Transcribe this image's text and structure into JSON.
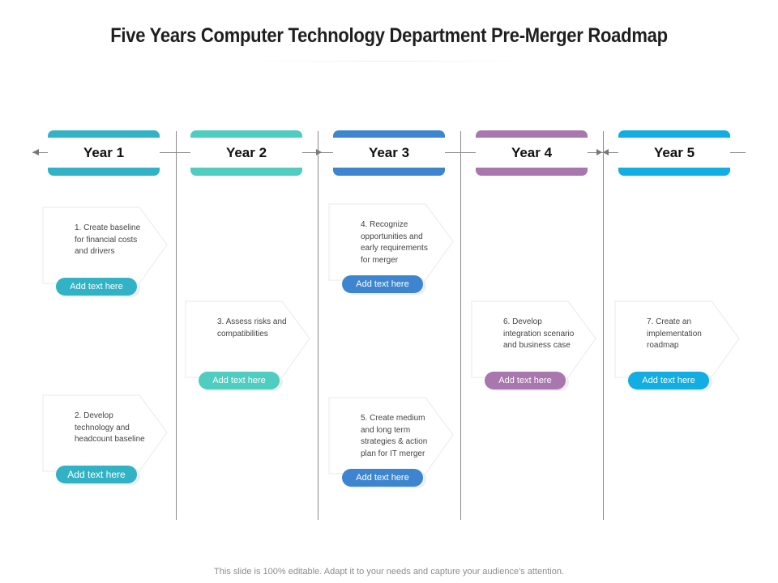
{
  "title": "Five Years Computer Technology Department Pre-Merger Roadmap",
  "colors": {
    "year1": "#32b2c5",
    "year2": "#4ecdc0",
    "year3": "#3d86cf",
    "year4": "#a877ad",
    "year5": "#12ade2",
    "line": "#8a8a8a"
  },
  "years": [
    {
      "label": "Year 1"
    },
    {
      "label": "Year 2"
    },
    {
      "label": "Year 3"
    },
    {
      "label": "Year 4"
    },
    {
      "label": "Year 5"
    }
  ],
  "cards": [
    {
      "text": "1. Create baseline for financial costs and drivers",
      "button": "Add text here"
    },
    {
      "text": "2. Develop technology and headcount baseline",
      "button": "Add text here"
    },
    {
      "text": "3. Assess risks and compatibilities",
      "button": "Add text here"
    },
    {
      "text": "4. Recognize opportunities and early requirements for merger",
      "button": "Add text here"
    },
    {
      "text": "5. Create medium and long term strategies & action plan for IT merger",
      "button": "Add text here"
    },
    {
      "text": "6. Develop integration scenario and business case",
      "button": "Add text here"
    },
    {
      "text": "7. Create an implementation roadmap",
      "button": "Add text here"
    }
  ],
  "footer": "This slide is 100% editable. Adapt it to your needs and capture your audience's attention."
}
